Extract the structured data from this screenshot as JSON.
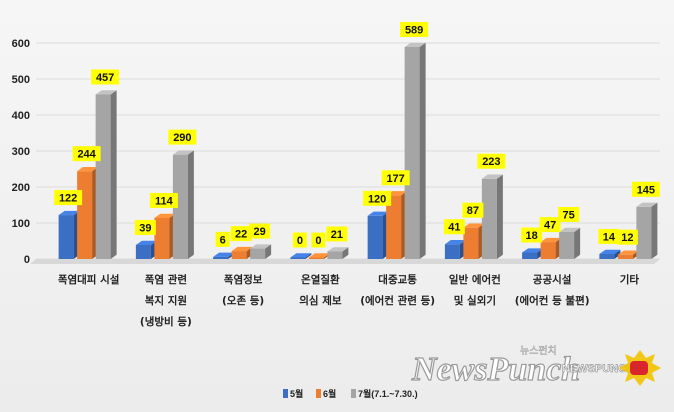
{
  "chart_data": {
    "type": "bar",
    "title": "",
    "xlabel": "",
    "ylabel": "",
    "ylim": [
      0,
      650
    ],
    "yticks": [
      0,
      100,
      200,
      300,
      400,
      500,
      600
    ],
    "grid": true,
    "legend_position": "bottom",
    "categories": [
      [
        "폭염대피 시설"
      ],
      [
        "폭염 관련",
        "복지 지원",
        "(냉방비 등)"
      ],
      [
        "폭염정보",
        "(오존 등)"
      ],
      [
        "온열질환",
        "의심 제보"
      ],
      [
        "대중교통",
        "(에어컨 관련 등)"
      ],
      [
        "일반 에어컨",
        "및 실외기"
      ],
      [
        "공공시설",
        "(에어컨 등 불편)"
      ],
      [
        "기타"
      ]
    ],
    "series": [
      {
        "name": "5월",
        "color": "#3a6fc4",
        "values": [
          122,
          39,
          6,
          0,
          120,
          41,
          18,
          14
        ]
      },
      {
        "name": "6월",
        "color": "#ed7d31",
        "values": [
          244,
          114,
          22,
          0,
          177,
          87,
          47,
          12
        ]
      },
      {
        "name": "7월(7.1.~7.30.)",
        "color": "#a5a5a5",
        "values": [
          457,
          290,
          29,
          21,
          589,
          223,
          75,
          145
        ]
      }
    ]
  },
  "watermark": {
    "logo_text": "NewsPunch",
    "korean_text": "뉴스펀치",
    "small_logo_text": "NEWSPUNCH"
  }
}
